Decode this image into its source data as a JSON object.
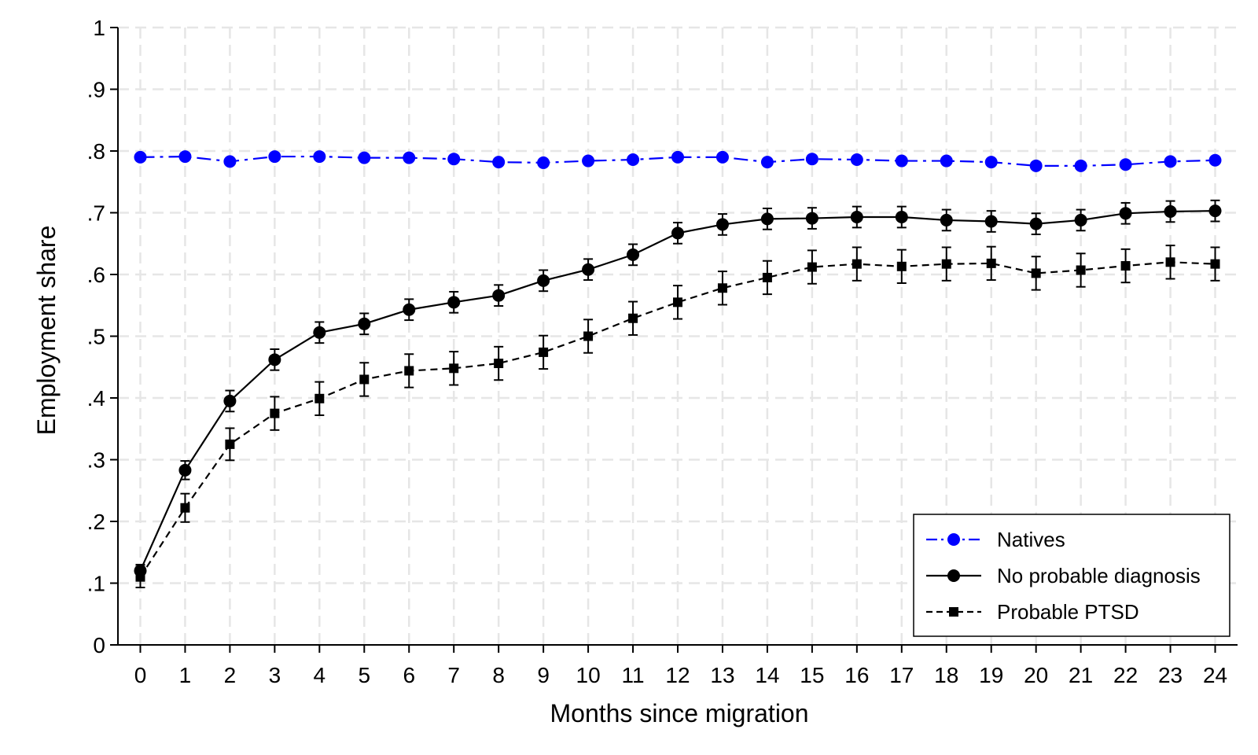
{
  "chart_data": {
    "type": "line",
    "title": "",
    "xlabel": "Months since migration",
    "ylabel": "Employment share",
    "x": [
      0,
      1,
      2,
      3,
      4,
      5,
      6,
      7,
      8,
      9,
      10,
      11,
      12,
      13,
      14,
      15,
      16,
      17,
      18,
      19,
      20,
      21,
      22,
      23,
      24
    ],
    "x_tick_labels": [
      "0",
      "1",
      "2",
      "3",
      "4",
      "5",
      "6",
      "7",
      "8",
      "9",
      "10",
      "11",
      "12",
      "13",
      "14",
      "15",
      "16",
      "17",
      "18",
      "19",
      "20",
      "21",
      "22",
      "23",
      "24"
    ],
    "y_ticks": [
      0,
      0.1,
      0.2,
      0.3,
      0.4,
      0.5,
      0.6,
      0.7,
      0.8,
      0.9,
      1
    ],
    "y_tick_labels": [
      "0",
      ".1",
      ".2",
      ".3",
      ".4",
      ".5",
      ".6",
      ".7",
      ".8",
      ".9",
      "1"
    ],
    "xlim": [
      -0.5,
      24.5
    ],
    "ylim": [
      0,
      1
    ],
    "grid": true,
    "legend_position": "bottom-right",
    "series": [
      {
        "name": "Natives",
        "color": "#0000ff",
        "line_style": "dash-dot",
        "marker": "circle",
        "values": [
          0.79,
          0.791,
          0.783,
          0.791,
          0.791,
          0.789,
          0.789,
          0.787,
          0.782,
          0.781,
          0.784,
          0.786,
          0.79,
          0.79,
          0.782,
          0.787,
          0.786,
          0.784,
          0.784,
          0.782,
          0.776,
          0.776,
          0.778,
          0.783,
          0.785
        ]
      },
      {
        "name": "No probable diagnosis",
        "color": "#000000",
        "line_style": "solid",
        "marker": "circle",
        "values": [
          0.12,
          0.283,
          0.395,
          0.462,
          0.506,
          0.52,
          0.543,
          0.555,
          0.566,
          0.59,
          0.608,
          0.632,
          0.667,
          0.681,
          0.69,
          0.691,
          0.693,
          0.693,
          0.688,
          0.686,
          0.682,
          0.688,
          0.699,
          0.702,
          0.703
        ],
        "ci_half": [
          0.01,
          0.015,
          0.017,
          0.017,
          0.017,
          0.017,
          0.017,
          0.017,
          0.017,
          0.017,
          0.017,
          0.017,
          0.017,
          0.017,
          0.017,
          0.017,
          0.017,
          0.017,
          0.017,
          0.017,
          0.017,
          0.017,
          0.017,
          0.017,
          0.017
        ]
      },
      {
        "name": "Probable PTSD",
        "color": "#000000",
        "line_style": "dash",
        "marker": "square",
        "values": [
          0.11,
          0.222,
          0.325,
          0.375,
          0.399,
          0.43,
          0.444,
          0.448,
          0.456,
          0.474,
          0.5,
          0.529,
          0.555,
          0.578,
          0.595,
          0.612,
          0.617,
          0.613,
          0.617,
          0.618,
          0.602,
          0.607,
          0.614,
          0.62,
          0.617
        ],
        "ci_half": [
          0.017,
          0.023,
          0.026,
          0.027,
          0.027,
          0.027,
          0.027,
          0.027,
          0.027,
          0.027,
          0.027,
          0.027,
          0.027,
          0.027,
          0.027,
          0.027,
          0.027,
          0.027,
          0.027,
          0.027,
          0.027,
          0.027,
          0.027,
          0.027,
          0.027
        ]
      }
    ]
  }
}
